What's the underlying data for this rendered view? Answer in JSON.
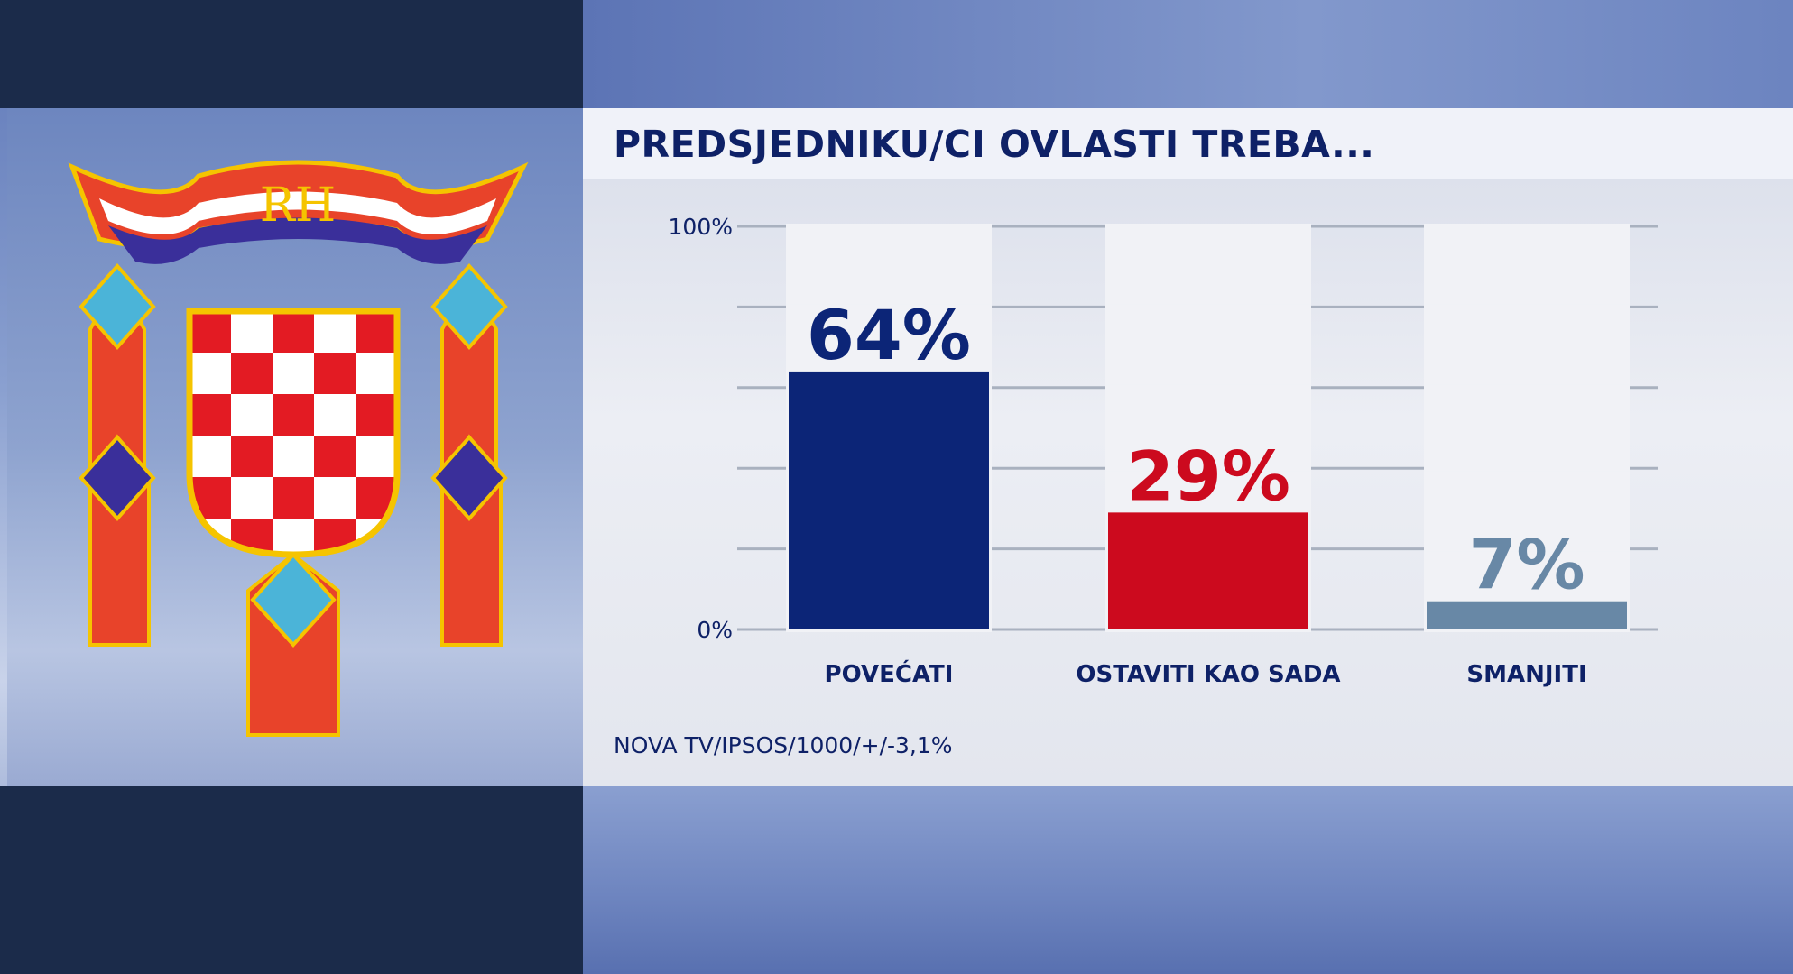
{
  "title": "PREDSJEDNIKU/CI OVLASTI TREBA...",
  "source": "NOVA TV/IPSOS/1000/+/-3,1%",
  "logo": {
    "text": "RH",
    "name": "croatian-coat-of-arms"
  },
  "chart_data": {
    "type": "bar",
    "title": "PREDSJEDNIKU/CI OVLASTI TREBA...",
    "categories": [
      "POVEĆATI",
      "OSTAVITI KAO SADA",
      "SMANJITI"
    ],
    "values": [
      64,
      29,
      7
    ],
    "data_labels": [
      "64%",
      "29%",
      "7%"
    ],
    "colors": [
      "#0c2577",
      "#cc0a1e",
      "#6888a6"
    ],
    "ylim": [
      0,
      100
    ],
    "yticks": [
      {
        "value": 0,
        "label": "0%"
      },
      {
        "value": 100,
        "label": "100%"
      }
    ],
    "grid_step": 20,
    "grid": true,
    "xlabel": "",
    "ylabel": ""
  }
}
